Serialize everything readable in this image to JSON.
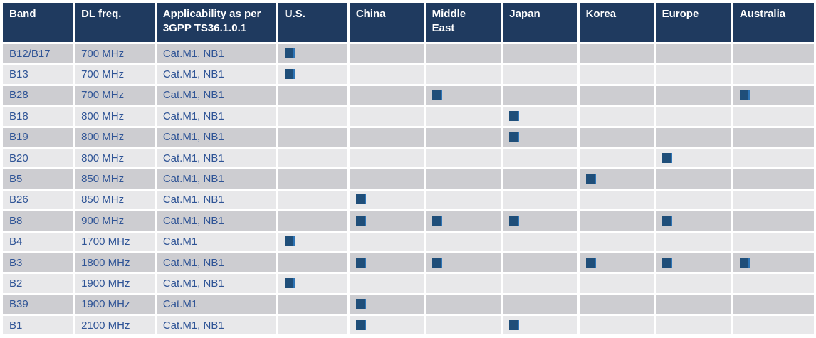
{
  "table": {
    "columns": [
      {
        "key": "band",
        "label": "Band",
        "type": "text"
      },
      {
        "key": "dl_freq",
        "label": "DL freq.",
        "type": "text"
      },
      {
        "key": "applicability",
        "label": "Applicability as per 3GPP TS36.1.0.1",
        "type": "text"
      },
      {
        "key": "us",
        "label": "U.S.",
        "type": "region"
      },
      {
        "key": "china",
        "label": "China",
        "type": "region"
      },
      {
        "key": "middle_east",
        "label": "Middle East",
        "type": "region"
      },
      {
        "key": "japan",
        "label": "Japan",
        "type": "region"
      },
      {
        "key": "korea",
        "label": "Korea",
        "type": "region"
      },
      {
        "key": "europe",
        "label": "Europe",
        "type": "region"
      },
      {
        "key": "australia",
        "label": "Australia",
        "type": "region"
      }
    ],
    "rows": [
      {
        "band": "B12/B17",
        "dl_freq": "700 MHz",
        "applicability": "Cat.M1, NB1",
        "regions": [
          "us"
        ]
      },
      {
        "band": "B13",
        "dl_freq": "700 MHz",
        "applicability": "Cat.M1, NB1",
        "regions": [
          "us"
        ]
      },
      {
        "band": "B28",
        "dl_freq": "700 MHz",
        "applicability": "Cat.M1, NB1",
        "regions": [
          "middle_east",
          "australia"
        ]
      },
      {
        "band": "B18",
        "dl_freq": "800 MHz",
        "applicability": "Cat.M1, NB1",
        "regions": [
          "japan"
        ]
      },
      {
        "band": "B19",
        "dl_freq": "800 MHz",
        "applicability": "Cat.M1, NB1",
        "regions": [
          "japan"
        ]
      },
      {
        "band": "B20",
        "dl_freq": "800 MHz",
        "applicability": "Cat.M1, NB1",
        "regions": [
          "europe"
        ]
      },
      {
        "band": "B5",
        "dl_freq": "850 MHz",
        "applicability": "Cat.M1, NB1",
        "regions": [
          "korea"
        ]
      },
      {
        "band": "B26",
        "dl_freq": "850 MHz",
        "applicability": "Cat.M1, NB1",
        "regions": [
          "china"
        ]
      },
      {
        "band": "B8",
        "dl_freq": "900 MHz",
        "applicability": "Cat.M1, NB1",
        "regions": [
          "china",
          "middle_east",
          "japan",
          "europe"
        ]
      },
      {
        "band": "B4",
        "dl_freq": "1700 MHz",
        "applicability": "Cat.M1",
        "regions": [
          "us"
        ]
      },
      {
        "band": "B3",
        "dl_freq": "1800 MHz",
        "applicability": "Cat.M1, NB1",
        "regions": [
          "china",
          "middle_east",
          "korea",
          "europe",
          "australia"
        ]
      },
      {
        "band": "B2",
        "dl_freq": "1900 MHz",
        "applicability": "Cat.M1, NB1",
        "regions": [
          "us"
        ]
      },
      {
        "band": "B39",
        "dl_freq": "1900 MHz",
        "applicability": "Cat.M1",
        "regions": [
          "china"
        ]
      },
      {
        "band": "B1",
        "dl_freq": "2100 MHz",
        "applicability": "Cat.M1, NB1",
        "regions": [
          "china",
          "japan"
        ]
      }
    ]
  },
  "colors": {
    "header_bg": "#1F3A5F",
    "header_text": "#FFFFFF",
    "row_dark": "#CDCDD1",
    "row_light": "#E8E8EA",
    "cell_text": "#2F5496",
    "marker": "#1F4E79",
    "marker_edge": "#2E74B5"
  }
}
